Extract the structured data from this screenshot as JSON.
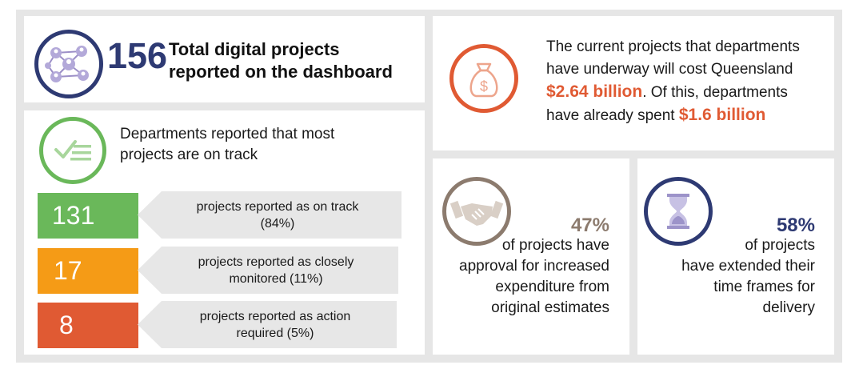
{
  "total": {
    "number": "156",
    "label_line1": "Total digital projects",
    "label_line2": "reported on the dashboard",
    "icon": "network-people-icon"
  },
  "status": {
    "heading_line1": "Departments reported that most",
    "heading_line2": "projects are on track",
    "icon": "checklist-icon",
    "items": [
      {
        "count": "131",
        "text_line1": "projects reported as on track",
        "text_line2": "(84%)",
        "color": "#6ab85a"
      },
      {
        "count": "17",
        "text_line1": "projects reported as closely",
        "text_line2": "monitored (11%)",
        "color": "#f59b16"
      },
      {
        "count": "8",
        "text_line1": "projects reported as action",
        "text_line2": "required (5%)",
        "color": "#e05a33"
      }
    ]
  },
  "cost": {
    "line1": "The current projects that departments",
    "line2": "have underway will cost Queensland",
    "amount1": "$2.64 billion",
    "line3_rest": ". Of this, departments",
    "line4_start": "have already spent ",
    "amount2": "$1.6 billion",
    "icon": "money-bag-icon",
    "accent": "#e05a33"
  },
  "approval": {
    "percent": "47%",
    "lines": [
      "of projects have",
      "approval for increased",
      "expenditure from",
      "original estimates"
    ],
    "icon": "handshake-icon",
    "accent": "#8c7b6e"
  },
  "timeframe": {
    "percent": "58%",
    "lines": [
      "of projects",
      "have extended their",
      "time frames for",
      "delivery"
    ],
    "icon": "hourglass-icon",
    "accent": "#2e3a73"
  }
}
